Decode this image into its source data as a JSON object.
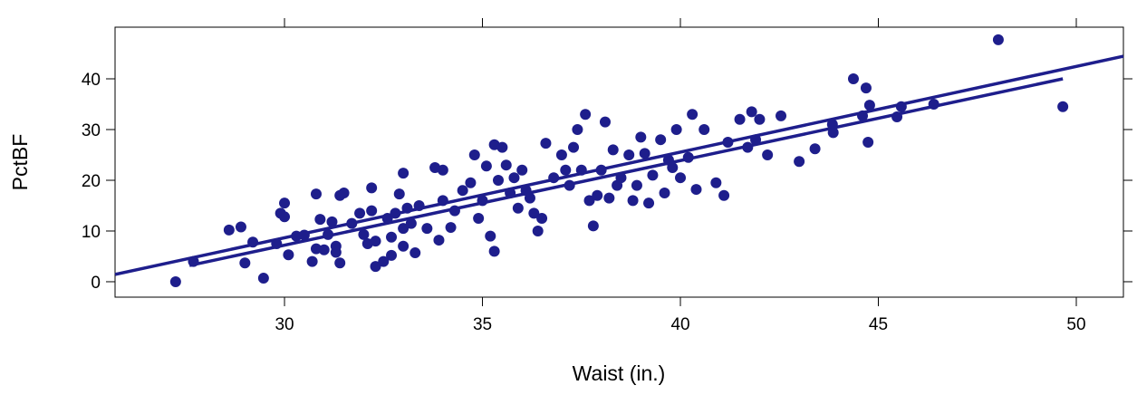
{
  "chart_data": {
    "type": "scatter",
    "xlabel": "Waist (in.)",
    "ylabel": "PctBF",
    "color": "#1e1e8c",
    "xlim": [
      25.72,
      51.19
    ],
    "ylim": [
      -3.04,
      50.18
    ],
    "xticks": [
      30,
      35,
      40,
      45,
      50
    ],
    "yticks": [
      0,
      10,
      20,
      30,
      40
    ],
    "x": [
      27.25,
      27.7,
      28.6,
      28.9,
      29.0,
      29.2,
      29.47,
      29.8,
      29.9,
      30.0,
      30.0,
      30.1,
      30.3,
      30.5,
      30.7,
      30.8,
      30.8,
      30.9,
      31.0,
      31.1,
      31.2,
      31.3,
      31.3,
      31.4,
      31.4,
      31.5,
      31.7,
      31.9,
      32.0,
      32.1,
      32.2,
      32.2,
      32.3,
      32.3,
      32.5,
      32.6,
      32.7,
      32.7,
      32.8,
      32.9,
      33.0,
      33.0,
      33.0,
      33.1,
      33.2,
      33.3,
      33.4,
      33.6,
      33.8,
      33.9,
      34.0,
      34.0,
      34.2,
      34.3,
      34.5,
      34.7,
      34.8,
      34.9,
      35.0,
      35.1,
      35.2,
      35.3,
      35.3,
      35.4,
      35.5,
      35.6,
      35.7,
      35.8,
      35.9,
      36.0,
      36.1,
      36.2,
      36.3,
      36.4,
      36.5,
      36.6,
      36.8,
      37.0,
      37.1,
      37.2,
      37.3,
      37.4,
      37.5,
      37.6,
      37.7,
      37.8,
      37.9,
      38.0,
      38.1,
      38.2,
      38.3,
      38.4,
      38.5,
      38.7,
      38.8,
      38.9,
      39.0,
      39.1,
      39.2,
      39.3,
      39.5,
      39.6,
      39.7,
      39.8,
      39.9,
      40.0,
      40.2,
      40.3,
      40.4,
      40.6,
      40.9,
      41.1,
      41.2,
      41.5,
      41.7,
      41.8,
      41.9,
      42.0,
      42.2,
      42.54,
      43.0,
      43.4,
      43.84,
      43.86,
      44.37,
      44.6,
      44.69,
      44.74,
      44.78,
      45.47,
      45.58,
      46.4,
      48.03,
      49.66
    ],
    "values": [
      0,
      4,
      10.2,
      10.8,
      3.7,
      7.8,
      0.7,
      7.5,
      13.5,
      15.5,
      12.8,
      5.3,
      9,
      9.2,
      4,
      17.3,
      6.5,
      12.3,
      6.3,
      9.3,
      11.8,
      7,
      5.8,
      3.7,
      17,
      17.5,
      11.5,
      13.5,
      9.3,
      7.5,
      18.5,
      14,
      3,
      8,
      4,
      12.5,
      5.2,
      8.8,
      13.5,
      17.3,
      21.4,
      10.5,
      7,
      14.5,
      11.5,
      5.7,
      15,
      10.5,
      22.5,
      8.2,
      22,
      16,
      10.7,
      14,
      18,
      19.5,
      25,
      12.5,
      16,
      22.8,
      9,
      27,
      6,
      20,
      26.5,
      23,
      17.5,
      20.5,
      14.5,
      22,
      18,
      16.5,
      13.5,
      10,
      12.5,
      27.3,
      20.5,
      25,
      22,
      19,
      26.5,
      30,
      22,
      33,
      16,
      11,
      17,
      22,
      31.5,
      16.5,
      26,
      19,
      20.5,
      25,
      16,
      19,
      28.5,
      25.3,
      15.5,
      21,
      28,
      17.5,
      24,
      22.5,
      30,
      20.5,
      24.5,
      33,
      18.2,
      30,
      19.5,
      17,
      27.5,
      32,
      26.5,
      33.5,
      28,
      32,
      25,
      32.7,
      23.7,
      26.2,
      31,
      29.4,
      40,
      32.7,
      38.2,
      27.5,
      34.8,
      32.5,
      34.5,
      35,
      47.7,
      34.5
    ],
    "lines": [
      {
        "x": [
          25.72,
          51.19
        ],
        "y": [
          1.43,
          44.46
        ]
      },
      {
        "x": [
          27.6,
          49.66
        ],
        "y": [
          3.2,
          40
        ]
      }
    ]
  }
}
